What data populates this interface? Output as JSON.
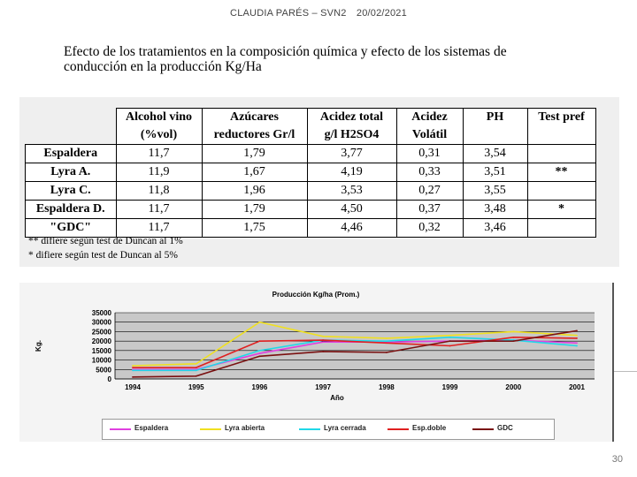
{
  "header": {
    "author": "CLAUDIA PARÉS – SVN2",
    "date": "20/02/2021"
  },
  "title": "Efecto de los tratamientos en la composición química y efecto de los sistemas de conducción en la producción Kg/Ha",
  "table": {
    "columns": [
      {
        "line1": "Alcohol vino",
        "line2": "(%vol)"
      },
      {
        "line1": "Azúcares",
        "line2": "reductores Gr/l"
      },
      {
        "line1": "Acidez total",
        "line2": "g/l H2SO4"
      },
      {
        "line1": "Acidez",
        "line2": "Volátil"
      },
      {
        "line1": "PH",
        "line2": ""
      },
      {
        "line1": "Test  pref",
        "line2": ""
      }
    ],
    "rows": [
      {
        "label": "Espaldera",
        "values": [
          "11,7",
          "1,79",
          "3,77",
          "0,31",
          "3,54",
          ""
        ]
      },
      {
        "label": "Lyra A.",
        "values": [
          "11,9",
          "1,67",
          "4,19",
          "0,33",
          "3,51",
          "**"
        ]
      },
      {
        "label": "Lyra C.",
        "values": [
          "11,8",
          "1,96",
          "3,53",
          "0,27",
          "3,55",
          ""
        ]
      },
      {
        "label": "Espaldera D.",
        "values": [
          "11,7",
          "1,79",
          "4,50",
          "0,37",
          "3,48",
          "*"
        ]
      },
      {
        "label": "\"GDC\"",
        "values": [
          "11,7",
          "1,75",
          "4,46",
          "0,32",
          "3,46",
          ""
        ]
      }
    ],
    "footnotes": [
      "** difiere según test de Duncan al 1%",
      "* difiere según test de Duncan al 5%"
    ]
  },
  "chart_data": {
    "type": "line",
    "title": "Producción Kg/ha (Prom.)",
    "xlabel": "Año",
    "ylabel": "Kg.",
    "x": [
      "1994",
      "1995",
      "1996",
      "1997",
      "1998",
      "1999",
      "2000",
      "2001"
    ],
    "ylim": [
      0,
      35000
    ],
    "yticks": [
      "35000",
      "30000",
      "25000",
      "20000",
      "15000",
      "10000",
      "5000",
      "0"
    ],
    "grid": true,
    "legend_position": "bottom",
    "series": [
      {
        "name": "Espaldera",
        "color": "#e040e0",
        "values": [
          5000,
          5000,
          13500,
          19500,
          19500,
          20000,
          20500,
          19000
        ]
      },
      {
        "name": "Lyra abierta",
        "color": "#f0e020",
        "values": [
          7000,
          8000,
          30000,
          22500,
          21500,
          23000,
          25000,
          23000
        ]
      },
      {
        "name": "Lyra cerrada",
        "color": "#20d8e8",
        "values": [
          4500,
          4500,
          15000,
          20500,
          20000,
          22000,
          20500,
          17500
        ]
      },
      {
        "name": "Esp.doble",
        "color": "#e02020",
        "values": [
          6000,
          6000,
          20000,
          20500,
          19000,
          17500,
          22000,
          21500
        ]
      },
      {
        "name": "GDC",
        "color": "#7a1010",
        "values": [
          1000,
          1500,
          12000,
          14500,
          14000,
          20000,
          20000,
          25500
        ]
      }
    ]
  },
  "page_number": "30"
}
